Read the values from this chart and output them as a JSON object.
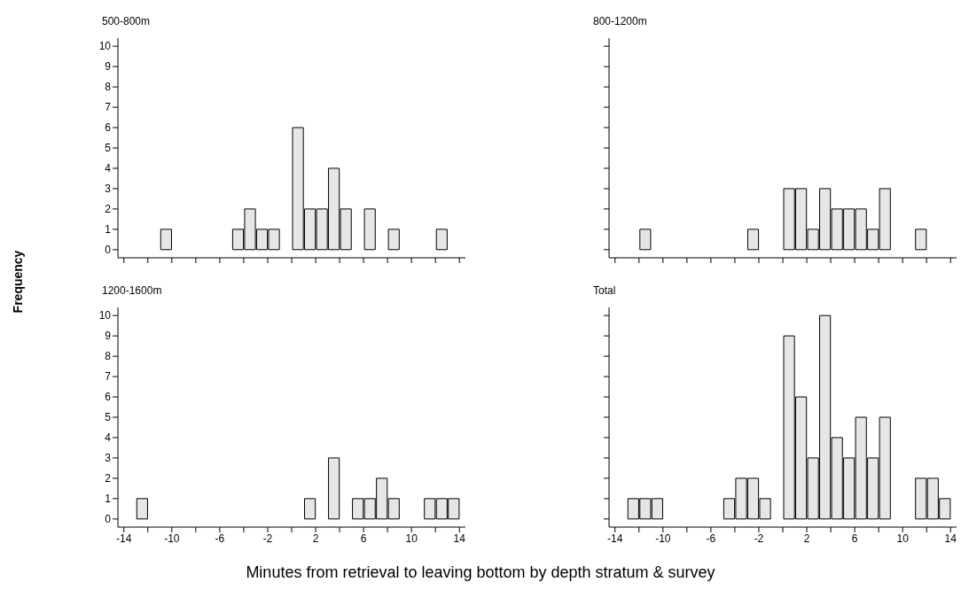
{
  "chart_data": [
    {
      "type": "histogram",
      "title": "500-800m",
      "ylabel": "Frequency",
      "bins": [
        -14,
        -13,
        -12,
        -11,
        -10,
        -9,
        -8,
        -7,
        -6,
        -5,
        -4,
        -3,
        -2,
        -1,
        0,
        1,
        2,
        3,
        4,
        5,
        6,
        7,
        8,
        9,
        10,
        11,
        12,
        13,
        14
      ],
      "values": [
        0,
        0,
        0,
        1,
        0,
        0,
        0,
        0,
        0,
        1,
        2,
        1,
        1,
        0,
        6,
        2,
        2,
        4,
        2,
        0,
        2,
        0,
        1,
        0,
        0,
        0,
        1,
        0
      ],
      "color": "#e6e6e6",
      "xlim": [
        -14.5,
        14.5
      ],
      "ylim": [
        -0.4,
        10.4
      ],
      "xticks": [
        -14,
        {
          "value": -12,
          "label": null
        },
        -10,
        {
          "value": -8,
          "label": null
        },
        -6,
        {
          "value": -4,
          "label": null
        },
        -2,
        {
          "value": 0,
          "label": null
        },
        2,
        {
          "value": 4,
          "label": null
        },
        6,
        {
          "value": 8,
          "label": null
        },
        10,
        {
          "value": 12,
          "label": null
        },
        14
      ],
      "yticks": [
        0,
        1,
        2,
        3,
        4,
        5,
        6,
        7,
        8,
        9,
        10
      ],
      "tick_labels": "y"
    },
    {
      "type": "histogram",
      "title": "800-1200m",
      "bins": [
        -14,
        -13,
        -12,
        -11,
        -10,
        -9,
        -8,
        -7,
        -6,
        -5,
        -4,
        -3,
        -2,
        -1,
        0,
        1,
        2,
        3,
        4,
        5,
        6,
        7,
        8,
        9,
        10,
        11,
        12,
        13,
        14
      ],
      "values": [
        0,
        0,
        1,
        0,
        0,
        0,
        0,
        0,
        0,
        0,
        0,
        1,
        0,
        0,
        3,
        3,
        1,
        3,
        2,
        2,
        2,
        1,
        3,
        0,
        0,
        1,
        0,
        0
      ],
      "color": "#e6e6e6",
      "xlim": [
        -14.5,
        14.5
      ],
      "ylim": [
        -0.4,
        10.4
      ],
      "xticks": [
        -14,
        {
          "value": -12,
          "label": null
        },
        -10,
        {
          "value": -8,
          "label": null
        },
        -6,
        {
          "value": -4,
          "label": null
        },
        -2,
        {
          "value": 0,
          "label": null
        },
        2,
        {
          "value": 4,
          "label": null
        },
        6,
        {
          "value": 8,
          "label": null
        },
        10,
        {
          "value": 12,
          "label": null
        },
        14
      ],
      "yticks": [
        0,
        1,
        2,
        3,
        4,
        5,
        6,
        7,
        8,
        9,
        10
      ],
      "tick_labels": false
    },
    {
      "type": "histogram",
      "title": "1200-1600m",
      "xlabel": "Minutes from retrieval to leaving bottom by depth stratum & survey",
      "bins": [
        -14,
        -13,
        -12,
        -11,
        -10,
        -9,
        -8,
        -7,
        -6,
        -5,
        -4,
        -3,
        -2,
        -1,
        0,
        1,
        2,
        3,
        4,
        5,
        6,
        7,
        8,
        9,
        10,
        11,
        12,
        13,
        14
      ],
      "values": [
        0,
        1,
        0,
        0,
        0,
        0,
        0,
        0,
        0,
        0,
        0,
        0,
        0,
        0,
        0,
        1,
        0,
        3,
        0,
        1,
        1,
        2,
        1,
        0,
        0,
        1,
        1,
        1
      ],
      "color": "#e6e6e6",
      "xlim": [
        -14.5,
        14.5
      ],
      "ylim": [
        -0.4,
        10.4
      ],
      "xticks": [
        -14,
        {
          "value": -12,
          "label": null
        },
        -10,
        {
          "value": -8,
          "label": null
        },
        -6,
        {
          "value": -4,
          "label": null
        },
        -2,
        {
          "value": 0,
          "label": null
        },
        2,
        {
          "value": 4,
          "label": null
        },
        6,
        {
          "value": 8,
          "label": null
        },
        10,
        {
          "value": 12,
          "label": null
        },
        14
      ],
      "yticks": [
        0,
        1,
        2,
        3,
        4,
        5,
        6,
        7,
        8,
        9,
        10
      ]
    },
    {
      "type": "histogram",
      "title": "Total",
      "bins": [
        -14,
        -13,
        -12,
        -11,
        -10,
        -9,
        -8,
        -7,
        -6,
        -5,
        -4,
        -3,
        -2,
        -1,
        0,
        1,
        2,
        3,
        4,
        5,
        6,
        7,
        8,
        9,
        10,
        11,
        12,
        13,
        14
      ],
      "values": [
        0,
        1,
        1,
        1,
        0,
        0,
        0,
        0,
        0,
        1,
        2,
        2,
        1,
        0,
        9,
        6,
        3,
        10,
        4,
        3,
        5,
        3,
        5,
        0,
        0,
        2,
        2,
        1
      ],
      "color": "#e6e6e6",
      "xlim": [
        -14.5,
        14.5
      ],
      "ylim": [
        -0.4,
        10.4
      ],
      "xticks": [
        -14,
        {
          "value": -12,
          "label": null
        },
        -10,
        {
          "value": -8,
          "label": null
        },
        -6,
        {
          "value": -4,
          "label": null
        },
        -2,
        {
          "value": 0,
          "label": null
        },
        2,
        {
          "value": 4,
          "label": null
        },
        6,
        {
          "value": 8,
          "label": null
        },
        10,
        {
          "value": 12,
          "label": null
        },
        14
      ],
      "yticks": [
        0,
        1,
        2,
        3,
        4,
        5,
        6,
        7,
        8,
        9,
        10
      ],
      "tick_labels": "x"
    }
  ]
}
